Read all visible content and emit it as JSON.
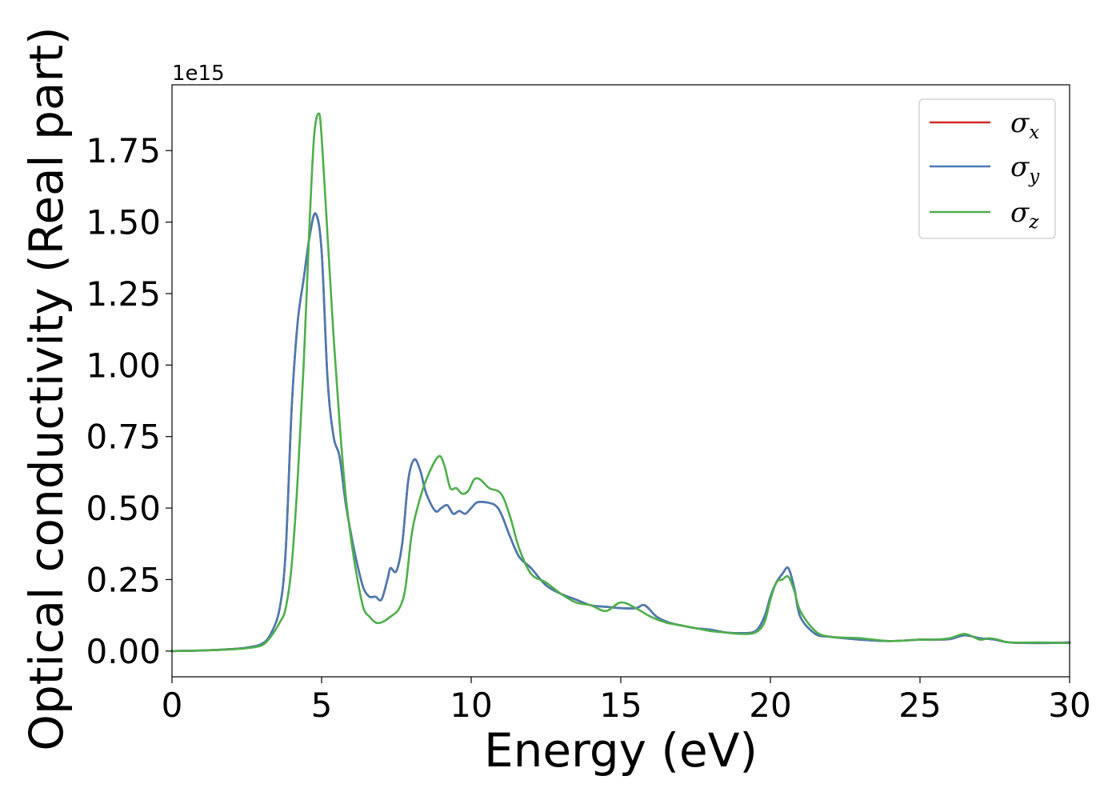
{
  "chart_data": {
    "type": "line",
    "title": "",
    "xlabel": "Energy (eV)",
    "ylabel": "Optical conductivity (Real part)",
    "y_offset_text": "1e15",
    "xlim": [
      0,
      30
    ],
    "ylim": [
      -0.09,
      1.98
    ],
    "x_ticks": [
      0,
      5,
      10,
      15,
      20,
      25,
      30
    ],
    "y_ticks": [
      0.0,
      0.25,
      0.5,
      0.75,
      1.0,
      1.25,
      1.5,
      1.75
    ],
    "x_tick_labels": [
      "0",
      "5",
      "10",
      "15",
      "20",
      "25",
      "30"
    ],
    "y_tick_labels": [
      "0.00",
      "0.25",
      "0.50",
      "0.75",
      "1.00",
      "1.25",
      "1.50",
      "1.75"
    ],
    "grid": false,
    "legend_position": "top-right",
    "series": [
      {
        "symbol": "σ",
        "subscript": "x",
        "color": "#d62728",
        "x": [
          0,
          1,
          2,
          2.5,
          3,
          3.3,
          3.6,
          3.8,
          4,
          4.2,
          4.4,
          4.6,
          4.8,
          5,
          5.2,
          5.4,
          5.6,
          5.8,
          6,
          6.2,
          6.4,
          6.6,
          6.8,
          7,
          7.2,
          7.3,
          7.5,
          7.7,
          7.9,
          8.1,
          8.3,
          8.5,
          8.8,
          9.0,
          9.2,
          9.4,
          9.6,
          9.8,
          10.0,
          10.2,
          10.5,
          10.8,
          11.0,
          11.3,
          11.6,
          12.0,
          12.5,
          13.0,
          13.5,
          14.0,
          14.5,
          15.0,
          15.5,
          15.8,
          16.2,
          16.6,
          17.0,
          17.5,
          18.0,
          18.5,
          19.0,
          19.5,
          19.8,
          20.0,
          20.2,
          20.4,
          20.6,
          20.8,
          21.0,
          21.5,
          22.0,
          23.0,
          24.0,
          25.0,
          25.5,
          26.0,
          26.5,
          27.0,
          27.5,
          28.0,
          29.0,
          30.0
        ],
        "values": [
          0.0,
          0.002,
          0.007,
          0.012,
          0.025,
          0.06,
          0.15,
          0.35,
          0.85,
          1.15,
          1.3,
          1.45,
          1.53,
          1.4,
          0.95,
          0.75,
          0.68,
          0.52,
          0.4,
          0.3,
          0.22,
          0.19,
          0.19,
          0.18,
          0.25,
          0.29,
          0.28,
          0.38,
          0.6,
          0.67,
          0.63,
          0.55,
          0.49,
          0.5,
          0.51,
          0.48,
          0.49,
          0.48,
          0.5,
          0.52,
          0.52,
          0.51,
          0.48,
          0.4,
          0.33,
          0.29,
          0.23,
          0.2,
          0.18,
          0.16,
          0.155,
          0.15,
          0.15,
          0.16,
          0.12,
          0.1,
          0.09,
          0.08,
          0.075,
          0.065,
          0.063,
          0.07,
          0.12,
          0.19,
          0.24,
          0.27,
          0.29,
          0.22,
          0.12,
          0.06,
          0.05,
          0.04,
          0.035,
          0.04,
          0.04,
          0.042,
          0.055,
          0.045,
          0.04,
          0.03,
          0.028,
          0.03
        ]
      },
      {
        "symbol": "σ",
        "subscript": "y",
        "color": "#4a7ab3",
        "x": [
          0,
          1,
          2,
          2.5,
          3,
          3.3,
          3.6,
          3.8,
          4,
          4.2,
          4.4,
          4.6,
          4.8,
          5,
          5.2,
          5.4,
          5.6,
          5.8,
          6,
          6.2,
          6.4,
          6.6,
          6.8,
          7,
          7.2,
          7.3,
          7.5,
          7.7,
          7.9,
          8.1,
          8.3,
          8.5,
          8.8,
          9.0,
          9.2,
          9.4,
          9.6,
          9.8,
          10.0,
          10.2,
          10.5,
          10.8,
          11.0,
          11.3,
          11.6,
          12.0,
          12.5,
          13.0,
          13.5,
          14.0,
          14.5,
          15.0,
          15.5,
          15.8,
          16.2,
          16.6,
          17.0,
          17.5,
          18.0,
          18.5,
          19.0,
          19.5,
          19.8,
          20.0,
          20.2,
          20.4,
          20.6,
          20.8,
          21.0,
          21.5,
          22.0,
          23.0,
          24.0,
          25.0,
          25.5,
          26.0,
          26.5,
          27.0,
          27.5,
          28.0,
          29.0,
          30.0
        ],
        "values": [
          0.0,
          0.002,
          0.007,
          0.012,
          0.025,
          0.06,
          0.15,
          0.35,
          0.85,
          1.15,
          1.3,
          1.45,
          1.53,
          1.4,
          0.95,
          0.75,
          0.68,
          0.52,
          0.4,
          0.3,
          0.22,
          0.19,
          0.19,
          0.18,
          0.25,
          0.29,
          0.28,
          0.38,
          0.6,
          0.67,
          0.63,
          0.55,
          0.49,
          0.5,
          0.51,
          0.48,
          0.49,
          0.48,
          0.5,
          0.52,
          0.52,
          0.51,
          0.48,
          0.4,
          0.33,
          0.29,
          0.23,
          0.2,
          0.18,
          0.16,
          0.155,
          0.15,
          0.15,
          0.16,
          0.12,
          0.1,
          0.09,
          0.08,
          0.075,
          0.065,
          0.063,
          0.07,
          0.12,
          0.19,
          0.24,
          0.27,
          0.29,
          0.22,
          0.12,
          0.06,
          0.05,
          0.04,
          0.035,
          0.04,
          0.04,
          0.042,
          0.055,
          0.045,
          0.04,
          0.03,
          0.028,
          0.03
        ]
      },
      {
        "symbol": "σ",
        "subscript": "z",
        "color": "#4daf4a",
        "x": [
          0,
          1,
          2,
          2.5,
          3,
          3.3,
          3.6,
          3.8,
          4.0,
          4.2,
          4.4,
          4.6,
          4.75,
          4.9,
          5.0,
          5.2,
          5.4,
          5.6,
          5.8,
          6.0,
          6.2,
          6.4,
          6.6,
          6.8,
          7.0,
          7.3,
          7.6,
          7.8,
          8.0,
          8.2,
          8.5,
          8.9,
          9.1,
          9.3,
          9.5,
          9.7,
          9.9,
          10.1,
          10.3,
          10.6,
          11.0,
          11.3,
          11.6,
          12.0,
          12.5,
          13.0,
          13.5,
          14.0,
          14.5,
          15.0,
          15.5,
          16.0,
          16.5,
          17.0,
          17.5,
          18.0,
          18.5,
          19.0,
          19.5,
          19.8,
          20.0,
          20.2,
          20.4,
          20.6,
          20.8,
          21.0,
          21.5,
          22.0,
          23.0,
          24.0,
          25.0,
          25.5,
          26.0,
          26.5,
          27.0,
          27.3,
          27.6,
          28.0,
          29.0,
          30.0
        ],
        "values": [
          0.0,
          0.002,
          0.006,
          0.01,
          0.02,
          0.05,
          0.1,
          0.15,
          0.3,
          0.6,
          1.0,
          1.5,
          1.8,
          1.88,
          1.8,
          1.45,
          1.1,
          0.8,
          0.55,
          0.38,
          0.25,
          0.15,
          0.12,
          0.1,
          0.1,
          0.12,
          0.15,
          0.22,
          0.4,
          0.5,
          0.6,
          0.68,
          0.65,
          0.57,
          0.57,
          0.55,
          0.56,
          0.6,
          0.6,
          0.57,
          0.55,
          0.47,
          0.36,
          0.27,
          0.24,
          0.2,
          0.17,
          0.16,
          0.14,
          0.17,
          0.15,
          0.12,
          0.1,
          0.09,
          0.08,
          0.07,
          0.065,
          0.06,
          0.065,
          0.1,
          0.18,
          0.24,
          0.25,
          0.26,
          0.21,
          0.14,
          0.07,
          0.05,
          0.045,
          0.035,
          0.04,
          0.04,
          0.045,
          0.06,
          0.04,
          0.045,
          0.04,
          0.03,
          0.03,
          0.028
        ]
      }
    ]
  }
}
